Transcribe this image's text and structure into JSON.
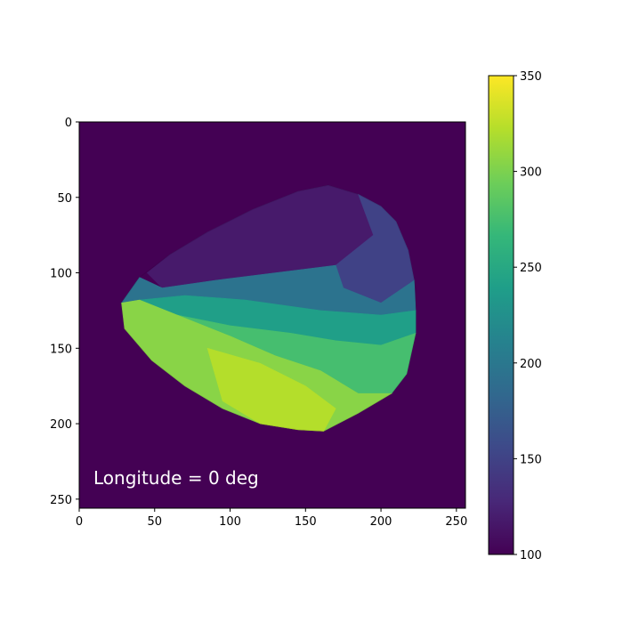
{
  "chart_data": {
    "type": "heatmap",
    "annotation": "Longitude = 0 deg",
    "x_ticks": [
      0,
      50,
      100,
      150,
      200,
      250
    ],
    "y_ticks": [
      0,
      50,
      100,
      150,
      200,
      250
    ],
    "xlim": [
      0,
      256
    ],
    "ylim": [
      256,
      0
    ],
    "colorbar": {
      "colormap": "viridis",
      "range": [
        100,
        350
      ],
      "ticks": [
        100,
        150,
        200,
        250,
        300,
        350
      ]
    },
    "background_value": 100,
    "object_outline": [
      [
        28,
        120
      ],
      [
        40,
        103
      ],
      [
        60,
        88
      ],
      [
        85,
        73
      ],
      [
        115,
        58
      ],
      [
        145,
        46
      ],
      [
        165,
        42
      ],
      [
        185,
        48
      ],
      [
        200,
        56
      ],
      [
        210,
        66
      ],
      [
        218,
        85
      ],
      [
        223,
        110
      ],
      [
        223,
        140
      ],
      [
        217,
        167
      ],
      [
        207,
        180
      ],
      [
        185,
        193
      ],
      [
        162,
        205
      ],
      [
        145,
        204
      ],
      [
        120,
        200
      ],
      [
        95,
        190
      ],
      [
        70,
        175
      ],
      [
        48,
        158
      ],
      [
        30,
        137
      ]
    ],
    "regions": [
      {
        "value": 118,
        "polygon": [
          [
            60,
            88
          ],
          [
            85,
            73
          ],
          [
            115,
            58
          ],
          [
            145,
            46
          ],
          [
            165,
            42
          ],
          [
            185,
            48
          ],
          [
            200,
            56
          ],
          [
            195,
            75
          ],
          [
            170,
            95
          ],
          [
            130,
            100
          ],
          [
            90,
            105
          ],
          [
            55,
            110
          ],
          [
            45,
            100
          ]
        ]
      },
      {
        "value": 150,
        "polygon": [
          [
            185,
            48
          ],
          [
            200,
            56
          ],
          [
            210,
            66
          ],
          [
            218,
            85
          ],
          [
            222,
            105
          ],
          [
            200,
            120
          ],
          [
            175,
            110
          ],
          [
            170,
            95
          ],
          [
            195,
            75
          ]
        ]
      },
      {
        "value": 195,
        "polygon": [
          [
            28,
            120
          ],
          [
            40,
            103
          ],
          [
            55,
            110
          ],
          [
            90,
            105
          ],
          [
            130,
            100
          ],
          [
            170,
            95
          ],
          [
            175,
            110
          ],
          [
            200,
            120
          ],
          [
            222,
            105
          ],
          [
            223,
            125
          ],
          [
            200,
            128
          ],
          [
            160,
            125
          ],
          [
            110,
            118
          ],
          [
            70,
            115
          ],
          [
            40,
            118
          ]
        ]
      },
      {
        "value": 240,
        "polygon": [
          [
            40,
            118
          ],
          [
            70,
            115
          ],
          [
            110,
            118
          ],
          [
            160,
            125
          ],
          [
            200,
            128
          ],
          [
            223,
            125
          ],
          [
            223,
            140
          ],
          [
            200,
            148
          ],
          [
            170,
            145
          ],
          [
            140,
            140
          ],
          [
            100,
            135
          ],
          [
            65,
            128
          ]
        ]
      },
      {
        "value": 275,
        "polygon": [
          [
            65,
            128
          ],
          [
            100,
            135
          ],
          [
            140,
            140
          ],
          [
            170,
            145
          ],
          [
            200,
            148
          ],
          [
            223,
            140
          ],
          [
            217,
            167
          ],
          [
            207,
            180
          ],
          [
            185,
            180
          ],
          [
            160,
            165
          ],
          [
            130,
            155
          ],
          [
            100,
            142
          ]
        ]
      },
      {
        "value": 305,
        "polygon": [
          [
            28,
            120
          ],
          [
            40,
            118
          ],
          [
            65,
            128
          ],
          [
            100,
            142
          ],
          [
            130,
            155
          ],
          [
            160,
            165
          ],
          [
            185,
            180
          ],
          [
            207,
            180
          ],
          [
            185,
            193
          ],
          [
            162,
            205
          ],
          [
            145,
            204
          ],
          [
            120,
            200
          ],
          [
            95,
            190
          ],
          [
            70,
            175
          ],
          [
            48,
            158
          ],
          [
            30,
            137
          ]
        ]
      },
      {
        "value": 322,
        "polygon": [
          [
            85,
            150
          ],
          [
            120,
            160
          ],
          [
            150,
            175
          ],
          [
            170,
            190
          ],
          [
            162,
            205
          ],
          [
            145,
            204
          ],
          [
            120,
            200
          ],
          [
            95,
            185
          ]
        ]
      }
    ]
  }
}
